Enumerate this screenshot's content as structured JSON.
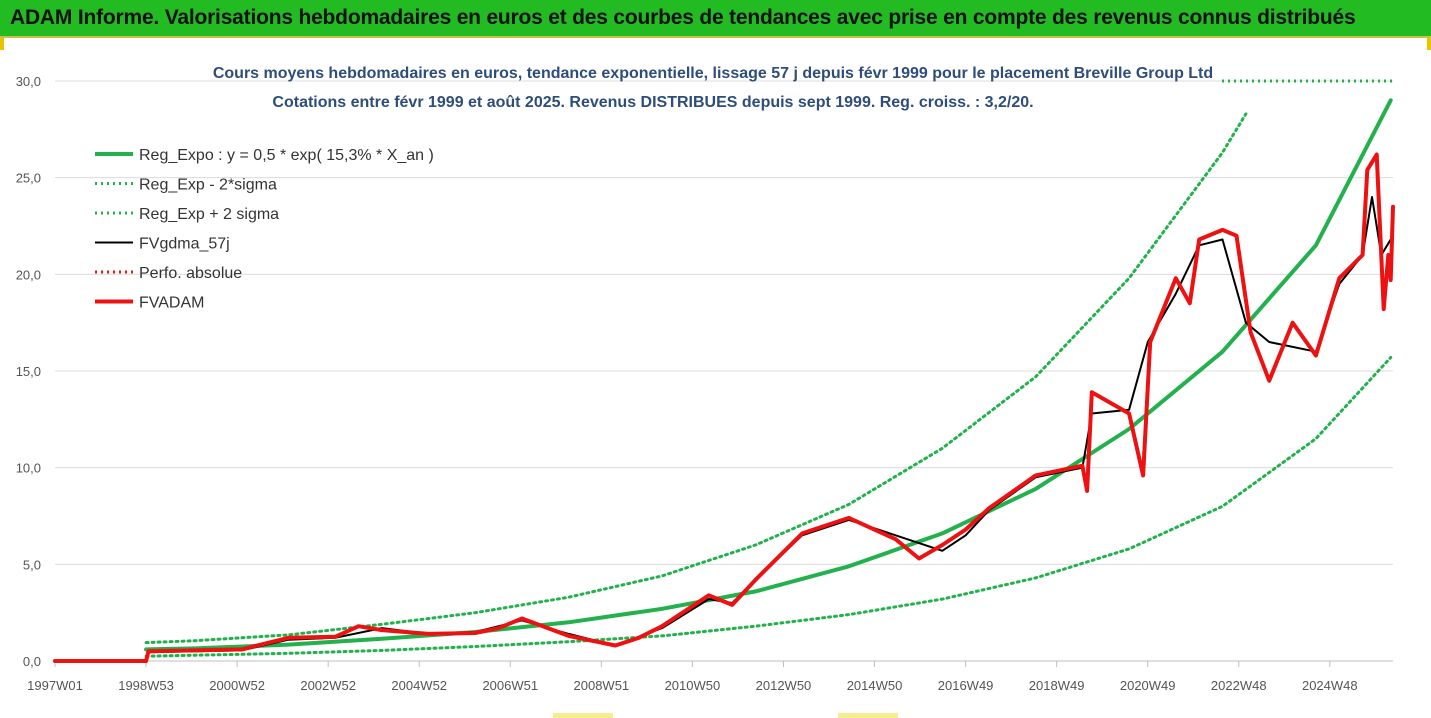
{
  "banner": {
    "title": "ADAM Informe. Valorisations hebdomadaires en euros et des courbes de tendances avec prise en compte des revenus connus distribués"
  },
  "colors": {
    "banner_bg": "#22bb22",
    "trend_green": "#22b14c",
    "price_red": "#ee1111",
    "smooth_black": "#000000",
    "subtitle_blue": "#2e4d7a"
  },
  "chart_data": {
    "type": "line",
    "subtitle_line1": "Cours moyens hebdomadaires en euros, tendance exponentielle, lissage 57 j depuis févr 1999 pour le placement Breville Group Ltd",
    "subtitle_line2": "Cotations entre févr 1999 et août 2025. Revenus DISTRIBUES depuis sept 1999. Reg. croiss. : 3,2/20.",
    "x_tick_labels": [
      "1997W01",
      "1998W53",
      "2000W52",
      "2002W52",
      "2004W52",
      "2006W51",
      "2008W51",
      "2010W50",
      "2012W50",
      "2014W50",
      "2016W49",
      "2018W49",
      "2020W49",
      "2022W48",
      "2024W48"
    ],
    "x_range_years": [
      1997.0,
      2025.65
    ],
    "y_tick_labels": [
      "0,0",
      "5,0",
      "10,0",
      "15,0",
      "20,0",
      "25,0",
      "30,0"
    ],
    "ylim": [
      0,
      30
    ],
    "ytick_step": 5,
    "grid": "horizontal",
    "legend_position": "top-left",
    "series": [
      {
        "name": "Reg_Expo : y = 0,5 * exp( 15,3% *  X_an )",
        "style": "solid-thick",
        "color": "#22b14c",
        "points": [
          [
            1998.95,
            0.6
          ],
          [
            2000,
            0.65
          ],
          [
            2002,
            0.85
          ],
          [
            2004,
            1.15
          ],
          [
            2006,
            1.5
          ],
          [
            2008,
            2.0
          ],
          [
            2010,
            2.7
          ],
          [
            2012,
            3.6
          ],
          [
            2014,
            4.9
          ],
          [
            2016,
            6.6
          ],
          [
            2018,
            8.9
          ],
          [
            2020,
            12.0
          ],
          [
            2022,
            16.0
          ],
          [
            2024,
            21.5
          ],
          [
            2025.6,
            29.0
          ]
        ]
      },
      {
        "name": "Reg_Exp - 2*sigma",
        "style": "dotted",
        "color": "#22b14c",
        "points": [
          [
            1998.95,
            0.25
          ],
          [
            2000,
            0.3
          ],
          [
            2002,
            0.4
          ],
          [
            2004,
            0.55
          ],
          [
            2006,
            0.75
          ],
          [
            2008,
            1.0
          ],
          [
            2010,
            1.3
          ],
          [
            2012,
            1.8
          ],
          [
            2014,
            2.4
          ],
          [
            2016,
            3.2
          ],
          [
            2018,
            4.3
          ],
          [
            2020,
            5.8
          ],
          [
            2022,
            8.0
          ],
          [
            2024,
            11.5
          ],
          [
            2025.6,
            15.7
          ]
        ]
      },
      {
        "name": "Reg_Exp + 2 sigma",
        "style": "dotted",
        "color": "#22b14c",
        "points": [
          [
            1998.95,
            0.95
          ],
          [
            2000,
            1.05
          ],
          [
            2002,
            1.35
          ],
          [
            2004,
            1.9
          ],
          [
            2006,
            2.5
          ],
          [
            2008,
            3.3
          ],
          [
            2010,
            4.4
          ],
          [
            2012,
            6.0
          ],
          [
            2014,
            8.1
          ],
          [
            2016,
            11.0
          ],
          [
            2018,
            14.7
          ],
          [
            2020,
            19.8
          ],
          [
            2022,
            26.3
          ],
          [
            2022.5,
            28.3
          ]
        ]
      },
      {
        "name": "FVgdma_57j",
        "style": "solid-thin",
        "color": "#000000",
        "points": [
          [
            1997.0,
            0.0
          ],
          [
            1998.95,
            0.0
          ],
          [
            1999.0,
            0.45
          ],
          [
            2000,
            0.5
          ],
          [
            2001,
            0.55
          ],
          [
            2002,
            1.1
          ],
          [
            2003,
            1.2
          ],
          [
            2004,
            1.7
          ],
          [
            2005,
            1.4
          ],
          [
            2006,
            1.5
          ],
          [
            2007,
            2.1
          ],
          [
            2008,
            1.4
          ],
          [
            2009,
            0.8
          ],
          [
            2010,
            1.7
          ],
          [
            2011,
            3.2
          ],
          [
            2011.5,
            3.0
          ],
          [
            2012,
            4.2
          ],
          [
            2013,
            6.5
          ],
          [
            2014,
            7.3
          ],
          [
            2015,
            6.5
          ],
          [
            2016,
            5.7
          ],
          [
            2016.5,
            6.5
          ],
          [
            2017,
            7.8
          ],
          [
            2018,
            9.5
          ],
          [
            2019,
            10.0
          ],
          [
            2019.2,
            12.8
          ],
          [
            2020,
            13.0
          ],
          [
            2020.4,
            16.5
          ],
          [
            2021,
            19.0
          ],
          [
            2021.5,
            21.5
          ],
          [
            2022,
            21.8
          ],
          [
            2022.5,
            17.5
          ],
          [
            2023,
            16.5
          ],
          [
            2024,
            16.0
          ],
          [
            2024.5,
            19.5
          ],
          [
            2025,
            21.0
          ],
          [
            2025.2,
            24.0
          ],
          [
            2025.4,
            21.0
          ],
          [
            2025.65,
            22.0
          ]
        ]
      },
      {
        "name": "Perfo. absolue",
        "style": "dotted",
        "color": "#ee1111",
        "points": []
      },
      {
        "name": "FVADAM",
        "style": "solid-thick",
        "color": "#ee1111",
        "points": [
          [
            1997.0,
            0.0
          ],
          [
            1998.95,
            0.0
          ],
          [
            1999.0,
            0.5
          ],
          [
            2000,
            0.55
          ],
          [
            2001,
            0.6
          ],
          [
            2002,
            1.2
          ],
          [
            2003,
            1.25
          ],
          [
            2003.5,
            1.8
          ],
          [
            2004,
            1.6
          ],
          [
            2005,
            1.4
          ],
          [
            2006,
            1.45
          ],
          [
            2006.5,
            1.7
          ],
          [
            2007,
            2.2
          ],
          [
            2008,
            1.3
          ],
          [
            2009,
            0.8
          ],
          [
            2009.5,
            1.2
          ],
          [
            2010,
            1.8
          ],
          [
            2011,
            3.4
          ],
          [
            2011.5,
            2.9
          ],
          [
            2012,
            4.2
          ],
          [
            2013,
            6.6
          ],
          [
            2014,
            7.4
          ],
          [
            2015,
            6.3
          ],
          [
            2015.5,
            5.3
          ],
          [
            2016,
            6.0
          ],
          [
            2016.5,
            6.8
          ],
          [
            2017,
            7.9
          ],
          [
            2018,
            9.6
          ],
          [
            2019,
            10.1
          ],
          [
            2019.1,
            8.8
          ],
          [
            2019.2,
            13.9
          ],
          [
            2020,
            12.8
          ],
          [
            2020.3,
            9.6
          ],
          [
            2020.45,
            16.5
          ],
          [
            2021,
            19.8
          ],
          [
            2021.3,
            18.5
          ],
          [
            2021.5,
            21.8
          ],
          [
            2022,
            22.3
          ],
          [
            2022.3,
            22.0
          ],
          [
            2022.6,
            17.0
          ],
          [
            2023,
            14.5
          ],
          [
            2023.5,
            17.5
          ],
          [
            2024,
            15.8
          ],
          [
            2024.5,
            19.8
          ],
          [
            2025,
            21.0
          ],
          [
            2025.1,
            25.4
          ],
          [
            2025.3,
            26.2
          ],
          [
            2025.45,
            18.2
          ],
          [
            2025.55,
            21.0
          ],
          [
            2025.6,
            19.7
          ],
          [
            2025.65,
            23.5
          ]
        ]
      }
    ],
    "top_dotted_level": 30
  }
}
